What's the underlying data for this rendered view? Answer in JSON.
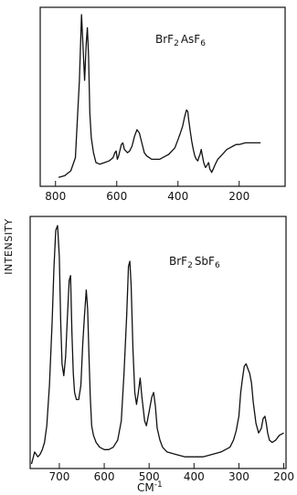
{
  "chart_data": [
    {
      "type": "line",
      "label": "BrF2 AsF6",
      "x_axis": {
        "ticks": [
          800,
          600,
          400,
          200
        ],
        "tick_labels": [
          "800",
          "600",
          "400",
          "200"
        ],
        "range": [
          850,
          50
        ],
        "inverted": true
      },
      "y_axis": {
        "label": "INTENSITY",
        "range": [
          0,
          1
        ]
      },
      "series": [
        {
          "x": [
            790,
            770,
            750,
            735,
            722,
            715,
            710,
            705,
            700,
            696,
            692,
            688,
            683,
            676,
            668,
            655,
            640,
            625,
            612,
            606,
            602,
            598,
            594,
            590,
            585,
            580,
            575,
            570,
            565,
            558,
            550,
            542,
            534,
            526,
            518,
            510,
            502,
            494,
            486,
            478,
            470,
            460,
            450,
            440,
            430,
            420,
            410,
            400,
            392,
            385,
            378,
            372,
            368,
            365,
            360,
            355,
            350,
            345,
            340,
            335,
            332,
            328,
            324,
            320,
            316,
            312,
            310,
            306,
            300,
            296,
            292,
            290,
            285,
            278,
            270,
            260,
            250,
            240,
            230,
            220,
            210,
            200,
            180,
            160,
            130
          ],
          "y": [
            0.01,
            0.02,
            0.05,
            0.13,
            0.6,
            1.0,
            0.8,
            0.6,
            0.82,
            0.92,
            0.75,
            0.4,
            0.25,
            0.16,
            0.1,
            0.09,
            0.1,
            0.11,
            0.13,
            0.16,
            0.17,
            0.12,
            0.14,
            0.17,
            0.21,
            0.22,
            0.18,
            0.17,
            0.16,
            0.17,
            0.2,
            0.26,
            0.3,
            0.28,
            0.22,
            0.16,
            0.14,
            0.13,
            0.12,
            0.12,
            0.12,
            0.12,
            0.13,
            0.14,
            0.15,
            0.17,
            0.19,
            0.24,
            0.28,
            0.32,
            0.38,
            0.42,
            0.41,
            0.36,
            0.29,
            0.23,
            0.18,
            0.14,
            0.12,
            0.11,
            0.13,
            0.15,
            0.18,
            0.14,
            0.1,
            0.08,
            0.07,
            0.08,
            0.1,
            0.06,
            0.05,
            0.04,
            0.06,
            0.09,
            0.12,
            0.14,
            0.16,
            0.18,
            0.19,
            0.2,
            0.21,
            0.21,
            0.22,
            0.22,
            0.22
          ]
        }
      ]
    },
    {
      "type": "line",
      "label": "BrF2 SbF6",
      "x_axis": {
        "ticks": [
          700,
          600,
          500,
          400,
          300,
          200
        ],
        "tick_labels": [
          "700",
          "600",
          "500",
          "400",
          "300",
          "200"
        ],
        "range": [
          765,
          195
        ],
        "inverted": true,
        "label": "CM-1"
      },
      "y_axis": {
        "label": "INTENSITY",
        "range": [
          0,
          1
        ]
      },
      "series": [
        {
          "x": [
            762,
            755,
            748,
            743,
            738,
            733,
            728,
            722,
            716,
            712,
            708,
            704,
            700,
            697,
            694,
            690,
            686,
            682,
            678,
            675,
            672,
            669,
            666,
            662,
            657,
            652,
            648,
            644,
            640,
            637,
            634,
            631,
            628,
            624,
            618,
            610,
            600,
            590,
            580,
            570,
            562,
            556,
            550,
            546,
            543,
            540,
            536,
            532,
            528,
            524,
            520,
            516,
            510,
            506,
            500,
            494,
            490,
            486,
            482,
            476,
            470,
            460,
            440,
            420,
            400,
            380,
            360,
            340,
            320,
            312,
            306,
            300,
            296,
            292,
            288,
            284,
            280,
            276,
            272,
            268,
            262,
            256,
            250,
            246,
            242,
            239,
            236,
            232,
            226,
            218,
            210,
            200
          ],
          "y": [
            0.0,
            0.05,
            0.03,
            0.04,
            0.06,
            0.09,
            0.16,
            0.33,
            0.6,
            0.82,
            0.98,
            1.0,
            0.87,
            0.6,
            0.42,
            0.37,
            0.45,
            0.62,
            0.77,
            0.79,
            0.55,
            0.38,
            0.3,
            0.27,
            0.27,
            0.33,
            0.5,
            0.62,
            0.73,
            0.65,
            0.45,
            0.28,
            0.16,
            0.12,
            0.09,
            0.07,
            0.06,
            0.06,
            0.07,
            0.1,
            0.18,
            0.38,
            0.62,
            0.83,
            0.85,
            0.75,
            0.48,
            0.3,
            0.25,
            0.3,
            0.36,
            0.28,
            0.18,
            0.16,
            0.22,
            0.28,
            0.3,
            0.24,
            0.15,
            0.1,
            0.07,
            0.05,
            0.04,
            0.03,
            0.03,
            0.03,
            0.04,
            0.05,
            0.07,
            0.1,
            0.14,
            0.2,
            0.3,
            0.36,
            0.41,
            0.42,
            0.4,
            0.38,
            0.34,
            0.26,
            0.17,
            0.13,
            0.15,
            0.19,
            0.2,
            0.17,
            0.13,
            0.1,
            0.09,
            0.1,
            0.12,
            0.13
          ]
        }
      ]
    }
  ],
  "panels": {
    "top": {
      "label_main": "BrF",
      "label_sub1": "2",
      "label_mid": "AsF",
      "label_sub2": "6"
    },
    "bottom": {
      "label_main": "BrF",
      "label_sub1": "2",
      "label_mid": "SbF",
      "label_sub2": "6"
    }
  },
  "axis_text": {
    "ylabel": "INTENSITY",
    "xunit_main": "CM",
    "xunit_sup": "-1"
  }
}
